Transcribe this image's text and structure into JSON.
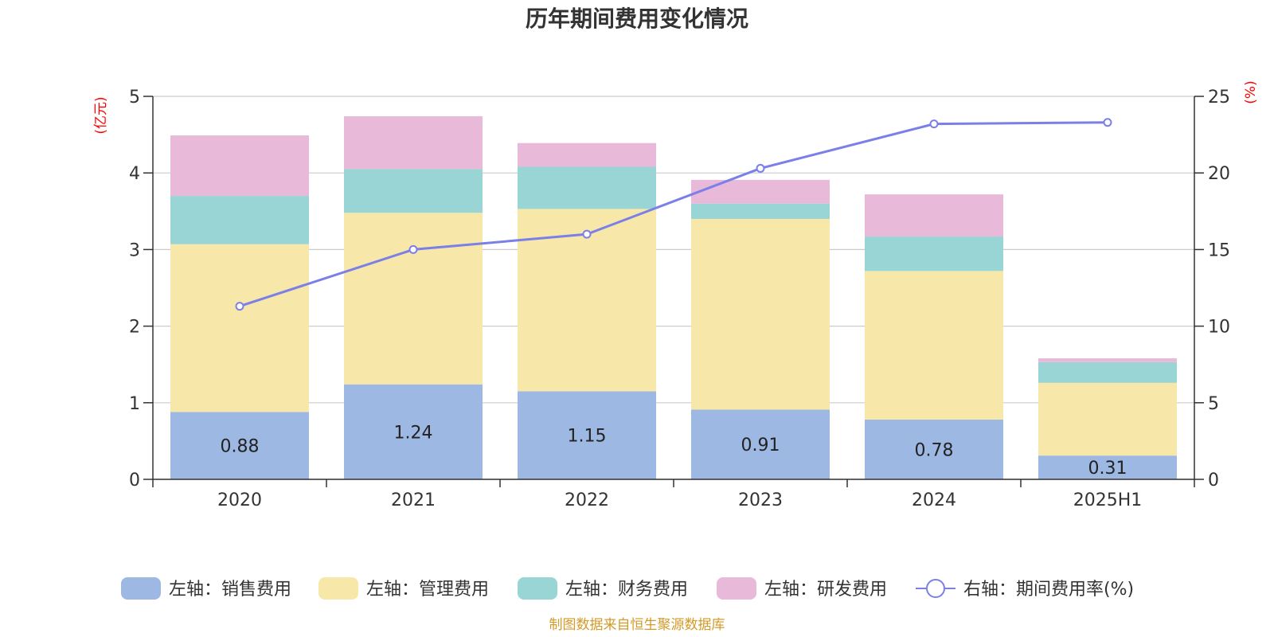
{
  "chart_data": {
    "type": "bar",
    "title": "历年期间费用变化情况",
    "categories": [
      "2020",
      "2021",
      "2022",
      "2023",
      "2024",
      "2025H1"
    ],
    "left_axis": {
      "unit": "(亿元)",
      "ylim": [
        0,
        5
      ],
      "ticks": [
        "0",
        "1",
        "2",
        "3",
        "4",
        "5"
      ]
    },
    "right_axis": {
      "unit": "(%)",
      "ylim": [
        0,
        25
      ],
      "ticks": [
        "0",
        "5",
        "10",
        "15",
        "20",
        "25"
      ]
    },
    "stacked": true,
    "series": [
      {
        "name": "左轴：销售费用",
        "axis": "left",
        "type": "bar",
        "color": "#9db8e2",
        "values": [
          0.88,
          1.24,
          1.15,
          0.91,
          0.78,
          0.31
        ],
        "labels": [
          "0.88",
          "1.24",
          "1.15",
          "0.91",
          "0.78",
          "0.31"
        ]
      },
      {
        "name": "左轴：管理费用",
        "axis": "left",
        "type": "bar",
        "color": "#f7e7a9",
        "values": [
          2.19,
          2.24,
          2.38,
          2.49,
          1.94,
          0.95
        ]
      },
      {
        "name": "左轴：财务费用",
        "axis": "left",
        "type": "bar",
        "color": "#98d5d4",
        "values": [
          0.63,
          0.57,
          0.55,
          0.2,
          0.45,
          0.27
        ]
      },
      {
        "name": "左轴：研发费用",
        "axis": "left",
        "type": "bar",
        "color": "#e8b9d9",
        "values": [
          0.79,
          0.69,
          0.31,
          0.31,
          0.55,
          0.05
        ]
      },
      {
        "name": "右轴：期间费用率(%)",
        "axis": "right",
        "type": "line",
        "color": "#7b7fe8",
        "values": [
          11.3,
          15.0,
          16.0,
          20.3,
          23.2,
          23.3
        ]
      }
    ],
    "grid": true,
    "legend_position": "bottom",
    "source_note": "制图数据来自恒生聚源数据库"
  }
}
